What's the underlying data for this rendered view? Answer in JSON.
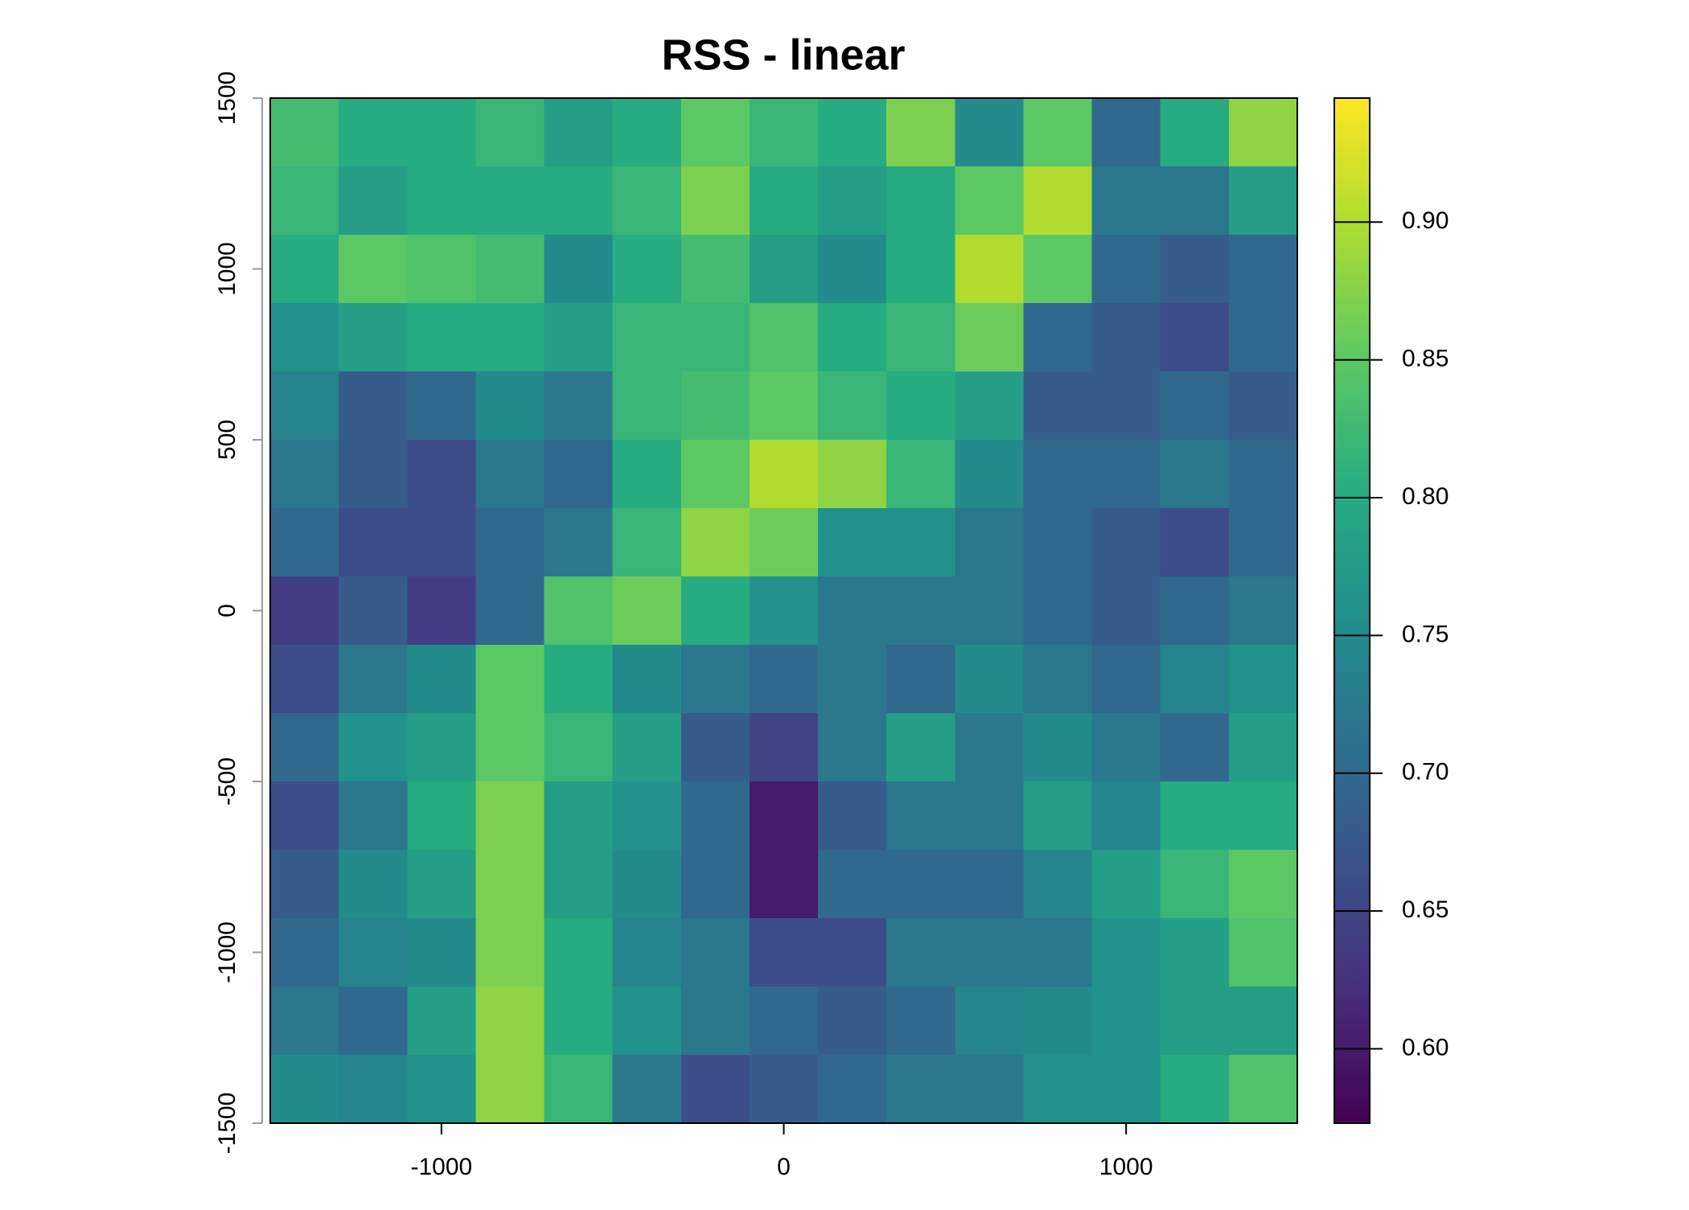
{
  "chart_data": {
    "type": "heatmap",
    "title": "RSS - linear",
    "colormap": "viridis",
    "x": [
      -1400,
      -1200,
      -1000,
      -800,
      -600,
      -400,
      -200,
      0,
      200,
      400,
      600,
      800,
      1000,
      1200,
      1400
    ],
    "y": [
      1400,
      1200,
      1000,
      800,
      600,
      400,
      200,
      0,
      -200,
      -400,
      -600,
      -800,
      -1000,
      -1200,
      -1400
    ],
    "z": [
      [
        0.83,
        0.8,
        0.8,
        0.82,
        0.78,
        0.8,
        0.85,
        0.82,
        0.8,
        0.87,
        0.75,
        0.85,
        0.7,
        0.8,
        0.88
      ],
      [
        0.82,
        0.78,
        0.8,
        0.8,
        0.8,
        0.82,
        0.87,
        0.8,
        0.78,
        0.8,
        0.85,
        0.9,
        0.72,
        0.72,
        0.78
      ],
      [
        0.8,
        0.85,
        0.84,
        0.83,
        0.75,
        0.8,
        0.83,
        0.78,
        0.75,
        0.8,
        0.9,
        0.85,
        0.7,
        0.68,
        0.7
      ],
      [
        0.76,
        0.78,
        0.8,
        0.8,
        0.78,
        0.82,
        0.82,
        0.84,
        0.8,
        0.82,
        0.86,
        0.7,
        0.68,
        0.66,
        0.7
      ],
      [
        0.74,
        0.68,
        0.7,
        0.75,
        0.72,
        0.82,
        0.83,
        0.85,
        0.82,
        0.8,
        0.78,
        0.68,
        0.68,
        0.7,
        0.68
      ],
      [
        0.72,
        0.68,
        0.66,
        0.72,
        0.7,
        0.8,
        0.85,
        0.9,
        0.88,
        0.82,
        0.75,
        0.7,
        0.7,
        0.72,
        0.7
      ],
      [
        0.7,
        0.66,
        0.66,
        0.7,
        0.72,
        0.82,
        0.88,
        0.86,
        0.76,
        0.76,
        0.72,
        0.7,
        0.68,
        0.66,
        0.7
      ],
      [
        0.64,
        0.68,
        0.64,
        0.7,
        0.84,
        0.86,
        0.8,
        0.76,
        0.72,
        0.72,
        0.72,
        0.7,
        0.68,
        0.7,
        0.72
      ],
      [
        0.66,
        0.72,
        0.75,
        0.85,
        0.8,
        0.75,
        0.72,
        0.7,
        0.72,
        0.7,
        0.75,
        0.72,
        0.7,
        0.74,
        0.76
      ],
      [
        0.7,
        0.76,
        0.78,
        0.85,
        0.82,
        0.78,
        0.68,
        0.65,
        0.72,
        0.78,
        0.72,
        0.75,
        0.72,
        0.7,
        0.78
      ],
      [
        0.66,
        0.72,
        0.8,
        0.87,
        0.78,
        0.76,
        0.7,
        0.6,
        0.68,
        0.72,
        0.72,
        0.78,
        0.74,
        0.8,
        0.8
      ],
      [
        0.68,
        0.75,
        0.78,
        0.87,
        0.78,
        0.75,
        0.7,
        0.6,
        0.7,
        0.7,
        0.7,
        0.74,
        0.78,
        0.82,
        0.85
      ],
      [
        0.7,
        0.74,
        0.75,
        0.87,
        0.8,
        0.74,
        0.72,
        0.66,
        0.66,
        0.72,
        0.72,
        0.72,
        0.76,
        0.78,
        0.84
      ],
      [
        0.72,
        0.7,
        0.78,
        0.88,
        0.8,
        0.76,
        0.72,
        0.7,
        0.68,
        0.7,
        0.74,
        0.75,
        0.76,
        0.78,
        0.78
      ],
      [
        0.75,
        0.74,
        0.76,
        0.88,
        0.82,
        0.72,
        0.66,
        0.68,
        0.7,
        0.72,
        0.72,
        0.76,
        0.76,
        0.8,
        0.84
      ]
    ],
    "xlim": [
      -1500,
      1500
    ],
    "ylim": [
      -1500,
      1500
    ],
    "xticks": [
      -1000,
      0,
      1000
    ],
    "yticks": [
      -1500,
      -1000,
      -500,
      0,
      500,
      1000,
      1500
    ],
    "clim": [
      0.573,
      0.945
    ],
    "cticks": [
      {
        "value": 0.6,
        "label": "0.60"
      },
      {
        "value": 0.65,
        "label": "0.65"
      },
      {
        "value": 0.7,
        "label": "0.70"
      },
      {
        "value": 0.75,
        "label": "0.75"
      },
      {
        "value": 0.8,
        "label": "0.80"
      },
      {
        "value": 0.85,
        "label": "0.85"
      },
      {
        "value": 0.9,
        "label": "0.90"
      }
    ]
  }
}
